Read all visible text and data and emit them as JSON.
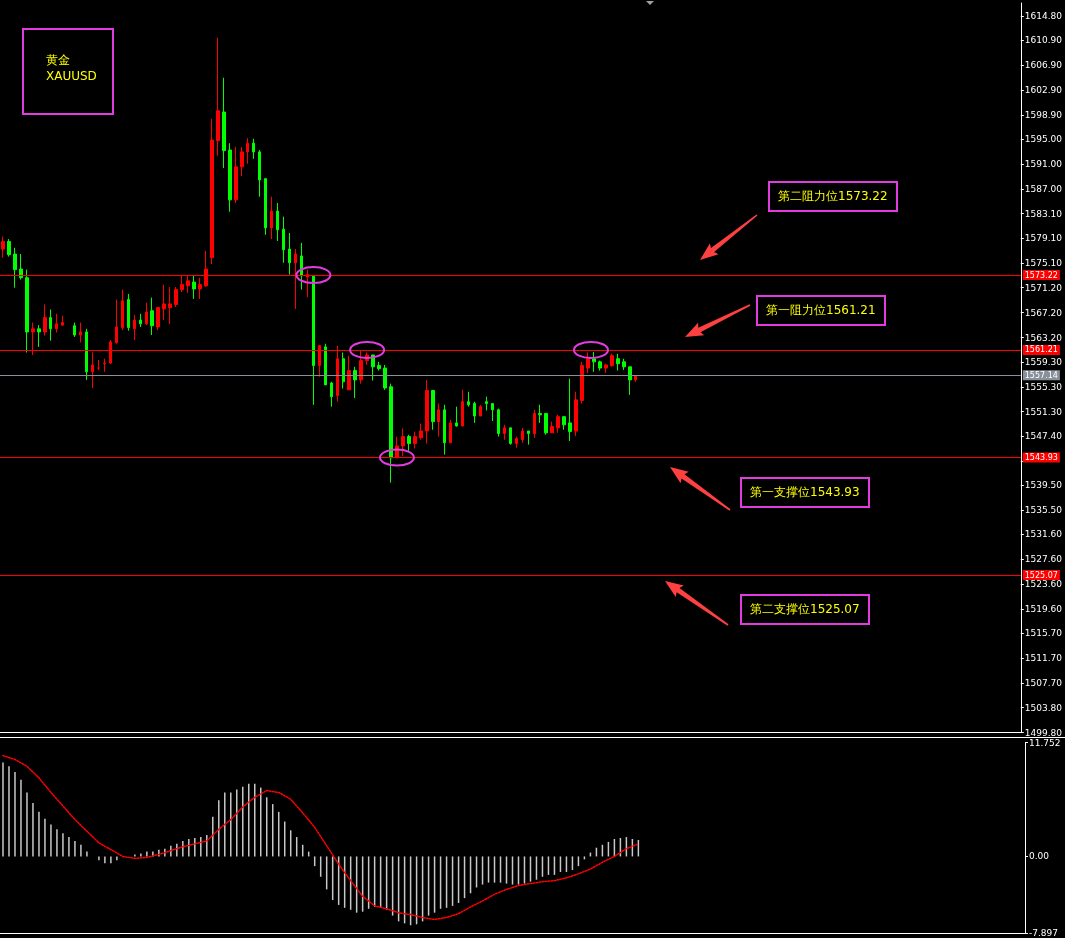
{
  "chart_data": [
    {
      "type": "candlestick",
      "annotations": [
        "黄金",
        "XAUUSD",
        "第二阻力位1573.22",
        "第一阻力位1561.21",
        "第一支撑位1543.93",
        "第二支撑位1525.07"
      ],
      "categories": [
        null,
        null,
        null,
        null,
        null,
        null,
        null,
        null,
        null,
        null,
        null,
        null,
        null,
        null,
        null,
        null,
        null,
        null,
        null,
        null,
        null,
        null,
        null,
        null,
        null,
        null,
        null,
        null,
        null,
        null,
        null,
        null,
        null,
        null,
        null,
        null,
        null,
        null,
        null,
        null,
        null,
        null,
        null,
        null,
        null,
        null,
        null,
        null,
        null,
        null,
        null,
        null,
        null,
        null,
        null,
        null,
        null,
        null,
        null,
        null,
        null,
        null,
        null,
        null,
        null,
        null,
        null,
        null,
        null,
        null,
        null,
        null,
        null,
        null,
        null,
        null,
        null,
        null,
        null,
        null,
        null,
        null,
        null,
        null,
        null,
        null,
        null,
        null,
        null,
        null,
        null,
        null,
        null,
        null,
        null,
        null,
        null,
        null,
        null,
        null,
        null,
        null,
        null,
        null,
        null,
        null,
        null,
        null,
        null,
        null,
        null,
        null,
        null,
        null,
        null,
        null,
        null,
        null,
        null,
        null,
        null,
        null,
        null,
        null,
        null,
        null,
        null,
        null,
        null,
        null,
        null,
        null,
        null,
        null,
        null,
        null,
        null,
        null,
        null,
        null,
        null,
        null,
        null,
        null,
        null,
        null,
        null,
        null,
        null,
        null,
        null,
        null,
        null,
        null,
        null,
        null,
        null,
        null,
        null,
        null,
        null,
        null,
        null,
        null,
        null,
        null,
        null,
        null,
        null,
        null,
        null
      ],
      "ohlc": [
        [
          1577.4,
          1579.4,
          1576.0,
          1578.6
        ],
        [
          1578.6,
          1579.0,
          1576.2,
          1576.5
        ],
        [
          1576.6,
          1577.6,
          1571.2,
          1574.1
        ],
        [
          1574.2,
          1576.6,
          1572.5,
          1572.8
        ],
        [
          1572.8,
          1574.1,
          1560.8,
          1564.1
        ],
        [
          1564.1,
          1565.6,
          1560.4,
          1564.6
        ],
        [
          1564.6,
          1565.2,
          1561.7,
          1564.1
        ],
        [
          1564.1,
          1568.5,
          1563.5,
          1566.4
        ],
        [
          1566.4,
          1567.7,
          1562.7,
          1564.6
        ],
        [
          1564.6,
          1567.0,
          1564.0,
          1565.4
        ],
        [
          1565.2,
          1566.7,
          1565.1,
          1565.6
        ],
        null,
        [
          1565.1,
          1565.6,
          1563.3,
          1563.6
        ],
        [
          1563.6,
          1565.6,
          1562.4,
          1564.1
        ],
        [
          1564.1,
          1564.6,
          1556.4,
          1557.7
        ],
        [
          1557.7,
          1560.8,
          1555.1,
          1558.8
        ],
        [
          1558.3,
          1559.6,
          1558.0,
          1558.3
        ],
        [
          1559.0,
          1559.8,
          1557.7,
          1559.1
        ],
        [
          1559.1,
          1562.8,
          1559.0,
          1562.5
        ],
        [
          1562.4,
          1569.3,
          1562.2,
          1564.9
        ],
        [
          1564.8,
          1570.9,
          1564.4,
          1569.1
        ],
        [
          1569.3,
          1570.2,
          1564.3,
          1564.8
        ],
        [
          1564.6,
          1566.8,
          1562.8,
          1566.0
        ],
        [
          1566.0,
          1567.0,
          1564.9,
          1565.4
        ],
        [
          1565.4,
          1568.8,
          1565.2,
          1567.3
        ],
        [
          1567.5,
          1569.6,
          1563.6,
          1565.1
        ],
        [
          1564.9,
          1568.1,
          1564.4,
          1568.0
        ],
        [
          1567.8,
          1571.7,
          1566.0,
          1568.6
        ],
        [
          1568.0,
          1571.3,
          1565.4,
          1568.6
        ],
        [
          1568.5,
          1571.3,
          1568.1,
          1570.9
        ],
        [
          1570.9,
          1573.1,
          1570.5,
          1571.7
        ],
        [
          1571.5,
          1573.1,
          1570.4,
          1572.3
        ],
        [
          1572.1,
          1573.1,
          1569.4,
          1571.0
        ],
        [
          1571.0,
          1572.8,
          1569.4,
          1571.7
        ],
        [
          1571.5,
          1577.1,
          1571.3,
          1574.2
        ],
        [
          1576.0,
          1598.3,
          1575.0,
          1594.9
        ],
        [
          1594.8,
          1611.3,
          1592.4,
          1599.6
        ],
        [
          1599.4,
          1604.9,
          1590.4,
          1593.2
        ],
        [
          1593.3,
          1594.4,
          1583.4,
          1585.3
        ],
        [
          1585.3,
          1593.8,
          1584.8,
          1590.6
        ],
        [
          1590.6,
          1593.8,
          1589.1,
          1593.0
        ],
        [
          1593.0,
          1595.2,
          1591.1,
          1594.4
        ],
        [
          1594.4,
          1595.1,
          1591.9,
          1593.0
        ],
        [
          1593.0,
          1593.3,
          1585.8,
          1588.5
        ],
        [
          1588.7,
          1588.8,
          1579.7,
          1580.8
        ],
        [
          1580.8,
          1585.8,
          1579.0,
          1583.5
        ],
        [
          1583.5,
          1584.8,
          1578.7,
          1580.5
        ],
        [
          1580.6,
          1582.6,
          1575.2,
          1577.3
        ],
        [
          1577.4,
          1580.0,
          1573.3,
          1575.2
        ],
        [
          1575.2,
          1577.4,
          1567.8,
          1576.6
        ],
        [
          1576.3,
          1578.4,
          1570.9,
          1573.1
        ],
        [
          1572.9,
          1574.1,
          1569.7,
          1573.3
        ],
        [
          1573.1,
          1573.1,
          1552.4,
          1558.7
        ],
        [
          1558.7,
          1561.9,
          1556.9,
          1561.9
        ],
        [
          1561.7,
          1562.2,
          1555.6,
          1555.6
        ],
        [
          1555.9,
          1556.1,
          1552.1,
          1553.7
        ],
        [
          1553.9,
          1561.9,
          1552.9,
          1559.8
        ],
        [
          1559.8,
          1560.8,
          1555.0,
          1556.1
        ],
        [
          1554.8,
          1560.3,
          1554.8,
          1557.9
        ],
        [
          1557.9,
          1558.5,
          1553.5,
          1556.4
        ],
        [
          1556.4,
          1561.1,
          1555.8,
          1559.5
        ],
        [
          1559.5,
          1560.8,
          1558.8,
          1560.4
        ],
        [
          1560.4,
          1560.4,
          1556.3,
          1558.5
        ],
        [
          1558.7,
          1559.3,
          1557.9,
          1558.2
        ],
        [
          1558.3,
          1558.8,
          1554.8,
          1555.1
        ],
        [
          1555.3,
          1555.8,
          1539.9,
          1543.9
        ],
        [
          1543.9,
          1547.3,
          1543.9,
          1545.8
        ],
        [
          1545.8,
          1548.6,
          1544.2,
          1547.3
        ],
        [
          1547.3,
          1547.6,
          1545.0,
          1546.2
        ],
        [
          1546.2,
          1548.1,
          1545.4,
          1547.3
        ],
        [
          1547.1,
          1549.4,
          1546.8,
          1548.2
        ],
        [
          1548.2,
          1556.4,
          1546.2,
          1554.7
        ],
        [
          1554.7,
          1554.8,
          1548.4,
          1549.7
        ],
        [
          1549.7,
          1552.6,
          1547.3,
          1551.6
        ],
        [
          1551.6,
          1552.4,
          1544.4,
          1546.3
        ],
        [
          1546.3,
          1550.0,
          1546.3,
          1549.5
        ],
        [
          1549.5,
          1552.1,
          1548.9,
          1549.0
        ],
        [
          1549.0,
          1554.8,
          1549.0,
          1552.9
        ],
        [
          1552.9,
          1554.5,
          1552.1,
          1552.4
        ],
        [
          1552.6,
          1552.9,
          1549.5,
          1550.6
        ],
        [
          1550.6,
          1552.4,
          1550.6,
          1552.1
        ],
        [
          1552.9,
          1553.7,
          1551.5,
          1552.6
        ],
        [
          1552.6,
          1552.6,
          1549.8,
          1551.6
        ],
        [
          1551.6,
          1551.8,
          1547.3,
          1547.8
        ],
        [
          1547.8,
          1549.2,
          1546.8,
          1548.7
        ],
        [
          1548.7,
          1548.7,
          1546.0,
          1546.2
        ],
        [
          1546.2,
          1547.3,
          1545.5,
          1547.0
        ],
        [
          1546.8,
          1548.7,
          1546.3,
          1548.2
        ],
        [
          1548.2,
          1548.2,
          1546.0,
          1547.8
        ],
        [
          1547.8,
          1551.6,
          1547.1,
          1551.0
        ],
        [
          1551.0,
          1552.4,
          1549.5,
          1550.8
        ],
        [
          1551.0,
          1551.1,
          1547.6,
          1547.9
        ],
        [
          1547.9,
          1549.7,
          1547.9,
          1548.9
        ],
        [
          1548.7,
          1550.8,
          1547.9,
          1550.5
        ],
        [
          1550.5,
          1550.5,
          1548.4,
          1549.2
        ],
        [
          1549.5,
          1556.6,
          1546.6,
          1548.1
        ],
        [
          1548.2,
          1554.5,
          1547.4,
          1553.2
        ],
        [
          1553.1,
          1559.3,
          1552.6,
          1558.7
        ],
        [
          1558.3,
          1560.8,
          1557.5,
          1559.8
        ],
        [
          1559.8,
          1560.9,
          1557.7,
          1559.3
        ],
        [
          1559.3,
          1559.5,
          1557.9,
          1558.3
        ],
        [
          1558.3,
          1559.0,
          1557.5,
          1558.8
        ],
        [
          1558.7,
          1560.6,
          1558.5,
          1560.3
        ],
        [
          1559.8,
          1560.6,
          1557.9,
          1559.0
        ],
        [
          1559.3,
          1559.8,
          1558.0,
          1558.5
        ],
        [
          1558.5,
          1558.5,
          1554.0,
          1556.4
        ],
        [
          1556.4,
          1557.1,
          1556.1,
          1557.1
        ],
        null,
        null,
        null,
        null,
        null,
        null,
        null,
        null,
        null,
        null,
        null,
        null,
        null,
        null,
        null,
        null,
        null,
        null,
        null,
        null,
        null,
        null,
        null,
        null,
        null,
        null,
        null,
        null,
        null,
        null,
        null,
        null,
        null,
        null,
        null,
        null,
        null,
        null,
        null,
        null,
        null,
        null,
        null,
        null,
        null,
        null,
        null,
        null,
        null,
        null,
        null,
        null,
        null,
        null,
        null,
        null,
        null,
        null,
        null,
        null,
        null,
        null,
        null,
        null
      ],
      "colors": [
        "#ff0000",
        "#00ff00",
        "#00ff00",
        "#00ff00",
        "#00ff00",
        "#ff0000",
        "#00ff00",
        "#ff0000",
        "#00ff00",
        "#ff0000",
        "#ff0000",
        null,
        "#00ff00",
        "#ff0000",
        "#00ff00",
        "#ff0000",
        "#ff0000",
        "#ff0000",
        "#ff0000",
        "#ff0000",
        "#ff0000",
        "#00ff00",
        "#ff0000",
        "#00ff00",
        "#ff0000",
        "#00ff00",
        "#ff0000",
        "#ff0000",
        "#ff0000",
        "#ff0000",
        "#ff0000",
        "#ff0000",
        "#00ff00",
        "#ff0000",
        "#ff0000",
        "#ff0000",
        "#ff0000",
        "#00ff00",
        "#00ff00",
        "#ff0000",
        "#ff0000",
        "#ff0000",
        "#00ff00",
        "#00ff00",
        "#00ff00",
        "#ff0000",
        "#00ff00",
        "#00ff00",
        "#00ff00",
        "#ff0000",
        "#00ff00",
        "#ff0000",
        "#00ff00",
        "#ff0000",
        "#00ff00",
        "#00ff00",
        "#ff0000",
        "#00ff00",
        "#ff0000",
        "#00ff00",
        "#ff0000",
        "#ff0000",
        "#00ff00",
        "#00ff00",
        "#00ff00",
        "#00ff00",
        "#ff0000",
        "#ff0000",
        "#00ff00",
        "#ff0000",
        "#ff0000",
        "#ff0000",
        "#00ff00",
        "#ff0000",
        "#00ff00",
        "#ff0000",
        "#00ff00",
        "#ff0000",
        "#00ff00",
        "#00ff00",
        "#ff0000",
        "#00ff00",
        "#00ff00",
        "#00ff00",
        "#ff0000",
        "#00ff00",
        "#ff0000",
        "#ff0000",
        "#00ff00",
        "#ff0000",
        "#00ff00",
        "#00ff00",
        "#ff0000",
        "#ff0000",
        "#00ff00",
        "#00ff00",
        "#ff0000",
        "#ff0000",
        "#ff0000",
        "#00ff00",
        "#00ff00",
        "#ff0000",
        "#ff0000",
        "#00ff00",
        "#00ff00",
        "#00ff00",
        "#ff0000",
        null,
        null,
        null,
        null,
        null,
        null,
        null,
        null,
        null,
        null,
        null,
        null,
        null,
        null,
        null,
        null,
        null,
        null,
        null,
        null,
        null,
        null,
        null,
        null,
        null,
        null,
        null,
        null,
        null,
        null,
        null,
        null,
        null,
        null,
        null,
        null,
        null,
        null,
        null,
        null,
        null,
        null,
        null,
        null,
        null,
        null,
        null,
        null,
        null,
        null,
        null,
        null,
        null,
        null,
        null,
        null,
        null,
        null,
        null,
        null,
        null,
        null,
        null,
        null
      ],
      "ylim": [
        1499.8,
        1616.9
      ],
      "yticks": [
        {
          "value": 1614.8,
          "label": "1614.80"
        },
        {
          "value": 1610.9,
          "label": "1610.90"
        },
        {
          "value": 1606.9,
          "label": "1606.90"
        },
        {
          "value": 1602.9,
          "label": "1602.90"
        },
        {
          "value": 1598.9,
          "label": "1598.90"
        },
        {
          "value": 1595,
          "label": "1595.00"
        },
        {
          "value": 1591,
          "label": "1591.00"
        },
        {
          "value": 1587,
          "label": "1587.00"
        },
        {
          "value": 1583.1,
          "label": "1583.10"
        },
        {
          "value": 1579.1,
          "label": "1579.10"
        },
        {
          "value": 1575.1,
          "label": "1575.10"
        },
        {
          "value": 1571.2,
          "label": "1571.20"
        },
        {
          "value": 1567.2,
          "label": "1567.20"
        },
        {
          "value": 1563.2,
          "label": "1563.20"
        },
        {
          "value": 1559.3,
          "label": "1559.30"
        },
        {
          "value": 1555.3,
          "label": "1555.30"
        },
        {
          "value": 1551.3,
          "label": "1551.30"
        },
        {
          "value": 1547.4,
          "label": "1547.40"
        },
        {
          "value": 1543.4,
          "label": null
        },
        {
          "value": 1539.5,
          "label": "1539.50"
        },
        {
          "value": 1535.5,
          "label": "1535.50"
        },
        {
          "value": 1531.6,
          "label": "1531.60"
        },
        {
          "value": 1527.6,
          "label": "1527.60"
        },
        {
          "value": 1523.6,
          "label": "1523.60"
        },
        {
          "value": 1519.6,
          "label": "1519.60"
        },
        {
          "value": 1515.7,
          "label": "1515.70"
        },
        {
          "value": 1511.7,
          "label": "1511.70"
        },
        {
          "value": 1507.7,
          "label": "1507.70"
        },
        {
          "value": 1503.8,
          "label": "1503.80"
        },
        {
          "value": 1499.8,
          "label": "1499.80"
        }
      ],
      "ref_lines": [
        {
          "axis": "y",
          "value": 1573.22,
          "label": "1573.22",
          "color": "#ff0000"
        },
        {
          "axis": "y",
          "value": 1561.21,
          "label": "1561.21",
          "color": "#ff0000"
        },
        {
          "axis": "y",
          "value": 1557.14,
          "label": "1557.14",
          "color": "#8a9099"
        },
        {
          "axis": "y",
          "value": 1543.93,
          "label": "1543.93",
          "color": "#ff0000"
        },
        {
          "axis": "y",
          "value": 1525.07,
          "label": "1525.07",
          "color": "#ff0000"
        }
      ],
      "grid": false,
      "tick_labels": "y"
    },
    {
      "type": "bar",
      "categories": [
        null,
        null,
        null,
        null,
        null,
        null,
        null,
        null,
        null,
        null,
        null,
        null,
        null,
        null,
        null,
        null,
        null,
        null,
        null,
        null,
        null,
        null,
        null,
        null,
        null,
        null,
        null,
        null,
        null,
        null,
        null,
        null,
        null,
        null,
        null,
        null,
        null,
        null,
        null,
        null,
        null,
        null,
        null,
        null,
        null,
        null,
        null,
        null,
        null,
        null,
        null,
        null,
        null,
        null,
        null,
        null,
        null,
        null,
        null,
        null,
        null,
        null,
        null,
        null,
        null,
        null,
        null,
        null,
        null,
        null,
        null,
        null,
        null,
        null,
        null,
        null,
        null,
        null,
        null,
        null,
        null,
        null,
        null,
        null,
        null,
        null,
        null,
        null,
        null,
        null,
        null,
        null,
        null,
        null,
        null,
        null,
        null,
        null,
        null,
        null,
        null,
        null,
        null,
        null,
        null,
        null,
        null,
        null,
        null,
        null,
        null,
        null,
        null,
        null,
        null,
        null,
        null,
        null,
        null,
        null,
        null,
        null,
        null,
        null,
        null,
        null,
        null,
        null,
        null,
        null,
        null,
        null,
        null,
        null,
        null,
        null,
        null,
        null,
        null,
        null,
        null,
        null,
        null,
        null,
        null,
        null,
        null,
        null,
        null,
        null,
        null,
        null,
        null,
        null,
        null,
        null,
        null,
        null,
        null,
        null,
        null,
        null,
        null,
        null,
        null,
        null,
        null,
        null,
        null,
        null,
        null
      ],
      "series": [
        {
          "type": "bar",
          "color": "#c8c8c8",
          "values": [
            9.7,
            9.3,
            8.7,
            7.9,
            6.6,
            5.5,
            4.6,
            3.9,
            3.3,
            2.8,
            2.4,
            2.0,
            1.6,
            1.2,
            0.5,
            0.0,
            -0.4,
            -0.7,
            -0.7,
            -0.4,
            0.0,
            0.0,
            0.2,
            0.3,
            0.5,
            0.5,
            0.7,
            0.8,
            1.1,
            1.3,
            1.6,
            1.8,
            1.9,
            2.0,
            2.2,
            4.1,
            5.8,
            6.6,
            6.6,
            6.9,
            7.2,
            7.5,
            7.5,
            7.1,
            6.1,
            5.4,
            4.6,
            3.6,
            2.7,
            2.0,
            1.2,
            0.5,
            -1.0,
            -2.1,
            -3.4,
            -4.5,
            -5.0,
            -5.3,
            -5.5,
            -5.8,
            -5.7,
            -5.4,
            -5.2,
            -5.3,
            -5.5,
            -6.1,
            -6.7,
            -6.9,
            -7.1,
            -7.0,
            -6.7,
            -6.1,
            -5.8,
            -5.4,
            -5.3,
            -5.1,
            -4.8,
            -4.3,
            -3.8,
            -3.2,
            -2.9,
            -2.7,
            -2.7,
            -2.7,
            -2.8,
            -2.9,
            -2.9,
            -2.8,
            -2.6,
            -2.4,
            -2.1,
            -1.9,
            -1.9,
            -1.6,
            -1.6,
            -1.4,
            -1.0,
            -0.3,
            0.4,
            0.9,
            1.2,
            1.5,
            1.8,
            1.9,
            2.0,
            1.8,
            1.7,
            null,
            null,
            null,
            null,
            null,
            null,
            null,
            null,
            null,
            null,
            null,
            null,
            null,
            null,
            null,
            null,
            null,
            null,
            null,
            null,
            null,
            null,
            null,
            null,
            null,
            null,
            null,
            null,
            null,
            null,
            null,
            null,
            null,
            null,
            null,
            null,
            null,
            null,
            null,
            null,
            null,
            null,
            null,
            null,
            null,
            null,
            null,
            null,
            null,
            null,
            null,
            null,
            null,
            null,
            null,
            null,
            null,
            null,
            null,
            null,
            null,
            null,
            null,
            null
          ]
        },
        {
          "type": "line",
          "color": "#ff0000",
          "line_style": "dotted",
          "values": [
            10.4,
            null,
            10.0,
            null,
            9.3,
            null,
            8.1,
            null,
            6.6,
            null,
            5.2,
            null,
            3.8,
            null,
            2.6,
            null,
            1.4,
            null,
            0.7,
            null,
            0.0,
            null,
            -0.2,
            null,
            -0.1,
            null,
            0.2,
            null,
            0.6,
            null,
            1.0,
            null,
            1.3,
            null,
            1.6,
            null,
            2.8,
            null,
            3.8,
            null,
            5.1,
            null,
            6.1,
            null,
            6.8,
            null,
            6.6,
            null,
            5.9,
            null,
            4.5,
            null,
            3.0,
            null,
            1.1,
            null,
            -0.8,
            null,
            -2.5,
            null,
            -4.1,
            null,
            -5.1,
            null,
            -5.4,
            null,
            -5.8,
            null,
            -6.0,
            null,
            -6.3,
            null,
            -6.5,
            null,
            -6.3,
            null,
            -5.9,
            null,
            -5.2,
            null,
            -4.6,
            null,
            -3.9,
            null,
            -3.4,
            null,
            -3.0,
            null,
            -2.8,
            null,
            -2.6,
            null,
            -2.5,
            null,
            -2.2,
            null,
            -1.8,
            null,
            -1.3,
            null,
            -0.6,
            null,
            0.0,
            null,
            0.8,
            null,
            1.3,
            null,
            null,
            null,
            null,
            null,
            null,
            null,
            null,
            null,
            null,
            null,
            null,
            null,
            null,
            null,
            null,
            null,
            null,
            null,
            null,
            null,
            null,
            null,
            null,
            null,
            null,
            null,
            null,
            null,
            null,
            null,
            null,
            null,
            null,
            null,
            null,
            null,
            null,
            null,
            null,
            null,
            null,
            null,
            null,
            null,
            null,
            null,
            null,
            null,
            null,
            null,
            null,
            null,
            null,
            null,
            null,
            null,
            null,
            null,
            null,
            null,
            null,
            null,
            null
          ]
        }
      ],
      "ylim": [
        -7.897,
        11.752
      ],
      "yticks": [
        {
          "value": 11.752,
          "label": "11.752"
        },
        {
          "value": 0,
          "label": "0.00"
        },
        {
          "value": -7.897,
          "label": "-7.897"
        }
      ],
      "grid": false,
      "tick_labels": "y"
    }
  ]
}
